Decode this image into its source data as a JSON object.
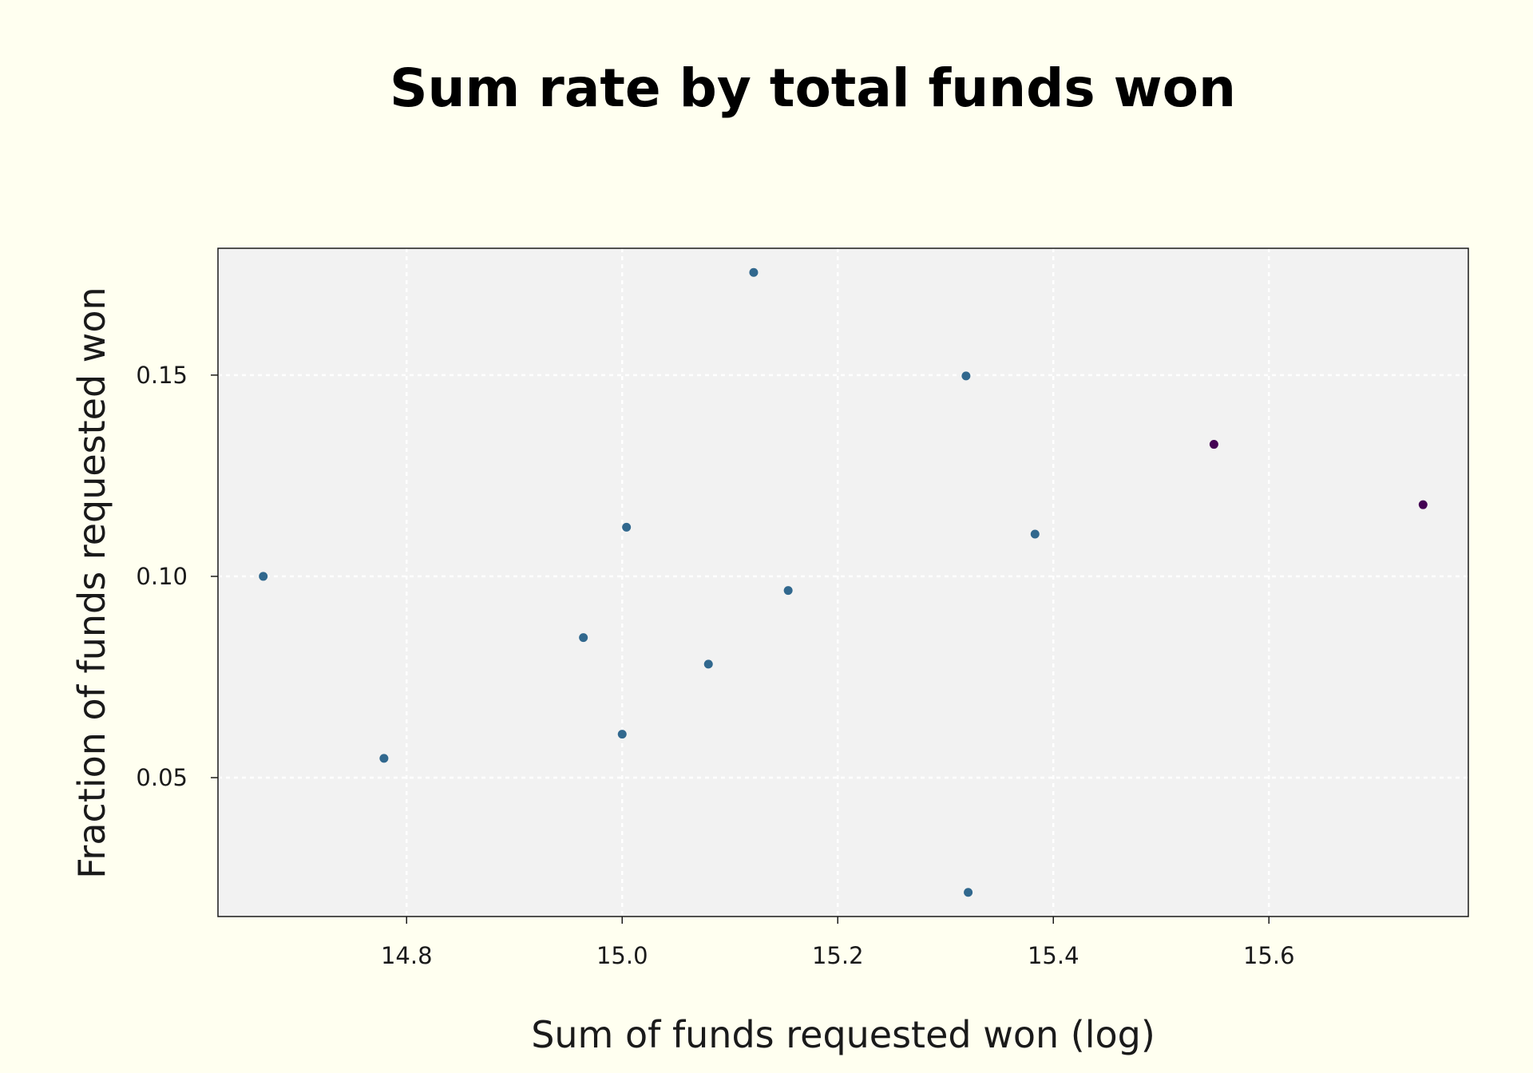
{
  "chart_data": {
    "type": "scatter",
    "title": "Sum rate by total funds won",
    "xlabel": "Sum of funds requested won (log)",
    "ylabel": "Fraction of funds requested won",
    "xlim": [
      14.625,
      15.785
    ],
    "ylim": [
      0.0155,
      0.1815
    ],
    "xticks": [
      14.8,
      15.0,
      15.2,
      15.4,
      15.6
    ],
    "xtick_labels": [
      "14.8",
      "15.0",
      "15.2",
      "15.4",
      "15.6"
    ],
    "yticks": [
      0.05,
      0.1,
      0.15
    ],
    "ytick_labels": [
      "0.05",
      "0.10",
      "0.15"
    ],
    "grid": true,
    "colors": {
      "page_background": "#fffff0",
      "plot_background": "#f2f2f2",
      "grid": "#ffffff",
      "series_main": "#31688e",
      "series_highlight": "#440154"
    },
    "points": [
      {
        "x": 14.667,
        "y": 0.1,
        "color": "#31688e"
      },
      {
        "x": 14.779,
        "y": 0.0548,
        "color": "#31688e"
      },
      {
        "x": 14.964,
        "y": 0.0848,
        "color": "#31688e"
      },
      {
        "x": 15.0,
        "y": 0.0608,
        "color": "#31688e"
      },
      {
        "x": 15.004,
        "y": 0.1122,
        "color": "#31688e"
      },
      {
        "x": 15.08,
        "y": 0.0782,
        "color": "#31688e"
      },
      {
        "x": 15.122,
        "y": 0.1755,
        "color": "#31688e"
      },
      {
        "x": 15.154,
        "y": 0.0965,
        "color": "#31688e"
      },
      {
        "x": 15.319,
        "y": 0.1498,
        "color": "#31688e"
      },
      {
        "x": 15.321,
        "y": 0.0215,
        "color": "#31688e"
      },
      {
        "x": 15.383,
        "y": 0.1105,
        "color": "#31688e"
      },
      {
        "x": 15.549,
        "y": 0.1328,
        "color": "#440154"
      },
      {
        "x": 15.743,
        "y": 0.1178,
        "color": "#440154"
      }
    ]
  }
}
